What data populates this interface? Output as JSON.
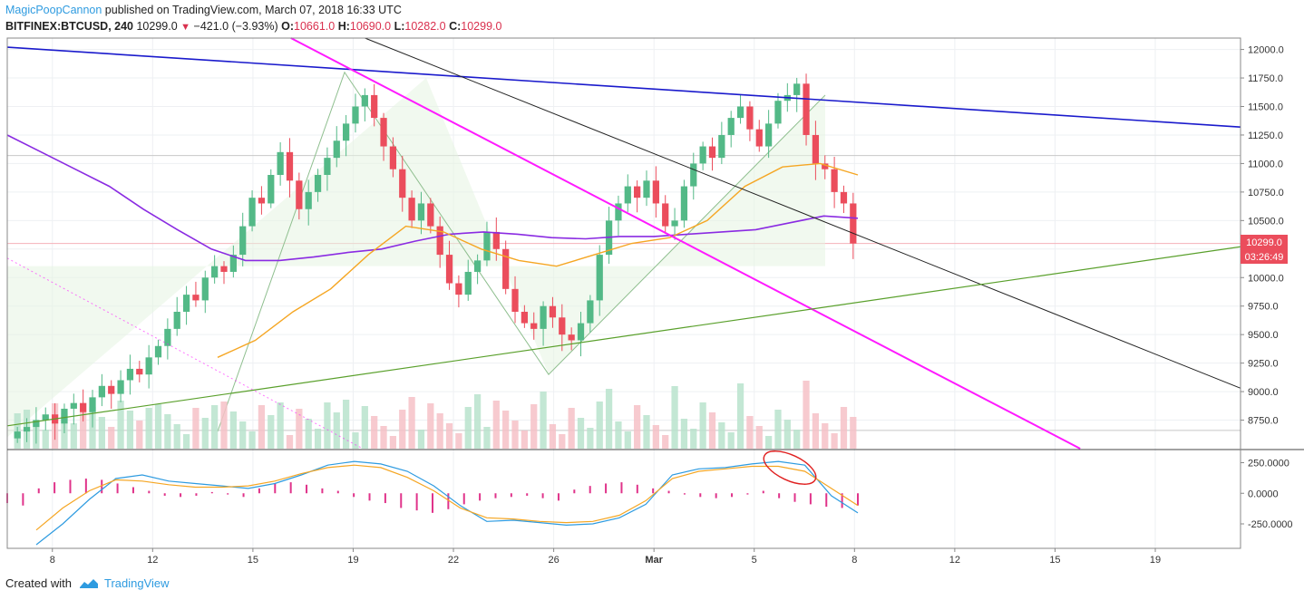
{
  "header": {
    "username": "MagicPoopCannon",
    "published_text": " published on TradingView.com, March 07, 2018 16:33 UTC",
    "symbol": "BITFINEX:BTCUSD, 240",
    "last": "10299.0",
    "change": "−421.0 (−3.93%)",
    "o_label": "O:",
    "o": "10661.0",
    "h_label": "H:",
    "h": "10690.0",
    "l_label": "L:",
    "l": "10282.0",
    "c_label": "C:",
    "c": "10299.0"
  },
  "price_tag": {
    "price": "10299.0",
    "countdown": "03:26:49"
  },
  "footer": {
    "created_with": "Created with",
    "brand": "TradingView"
  },
  "colors": {
    "up": "#53b987",
    "down": "#eb4d5c",
    "ma_purple": "#8a2be2",
    "ma_orange": "#f5a623",
    "blue_line": "#1a1acc",
    "magenta_line": "#ff1aff",
    "black_line": "#222222",
    "green_line": "#5aa02c",
    "macd": "#2e9be0",
    "signal": "#f5a623",
    "hist": "#e0338a"
  },
  "chart_data": [
    {
      "type": "candlestick",
      "title": "BITFINEX:BTCUSD, 240",
      "price_axis": {
        "ylim": [
          8500,
          12100
        ],
        "ticks": [
          "12000.0",
          "11750.0",
          "11500.0",
          "11250.0",
          "11000.0",
          "10750.0",
          "10500.0",
          "10250.0",
          "10000.0",
          "9750.0",
          "9500.0",
          "9250.0",
          "9000.0",
          "8750.0"
        ]
      },
      "time_axis": {
        "ticks": [
          "8",
          "12",
          "15",
          "19",
          "22",
          "26",
          "Mar",
          "5",
          "8",
          "12",
          "15",
          "19"
        ]
      },
      "grid": true,
      "candles_close": [
        8650,
        8690,
        8750,
        8800,
        8720,
        8850,
        8900,
        8820,
        8950,
        9050,
        8980,
        9100,
        9200,
        9150,
        9300,
        9400,
        9550,
        9700,
        9850,
        9800,
        10000,
        10100,
        10050,
        10200,
        10450,
        10700,
        10650,
        10900,
        11100,
        10850,
        10600,
        10750,
        10900,
        11050,
        11200,
        11350,
        11500,
        11600,
        11400,
        11150,
        10950,
        10700,
        10500,
        10650,
        10450,
        10200,
        9950,
        9850,
        10050,
        10150,
        10400,
        10250,
        9900,
        9700,
        9600,
        9550,
        9750,
        9650,
        9500,
        9450,
        9600,
        9800,
        10200,
        10500,
        10650,
        10800,
        10700,
        10850,
        10650,
        10450,
        10500,
        10800,
        11000,
        11150,
        11050,
        11250,
        11400,
        11500,
        11300,
        11150,
        11350,
        11550,
        11600,
        11700,
        11250,
        11000,
        10950,
        10750,
        10650,
        10299
      ],
      "ma_purple": [
        11250,
        11100,
        10950,
        10800,
        10600,
        10420,
        10250,
        10150,
        10150,
        10180,
        10220,
        10250,
        10320,
        10380,
        10400,
        10380,
        10350,
        10340,
        10360,
        10360,
        10380,
        10400,
        10420,
        10480,
        10540,
        10520
      ],
      "ma_orange": [
        9300,
        9450,
        9700,
        9900,
        10200,
        10450,
        10400,
        10250,
        10150,
        10100,
        10200,
        10300,
        10350,
        10500,
        10800,
        10970,
        11000,
        10900
      ],
      "lines": [
        {
          "name": "",
          "from": [
            0,
            12020
          ],
          "to": [
            1,
            11320
          ]
        },
        {
          "name": "",
          "from": [
            0.23,
            12100
          ],
          "to": [
            0.87,
            8500
          ]
        },
        {
          "name": "",
          "from": [
            0.29,
            12100
          ],
          "to": [
            1,
            9030
          ]
        },
        {
          "name": "",
          "from": [
            0,
            8700
          ],
          "to": [
            1,
            10270
          ]
        }
      ]
    },
    {
      "type": "line",
      "title": "",
      "y_axis": {
        "ticks": [
          "250.0000",
          "0.0000",
          "-250.0000"
        ],
        "ylim": [
          -450,
          350
        ]
      },
      "series": [
        {
          "values": [
            -420,
            -250,
            -50,
            120,
            150,
            100,
            80,
            60,
            40,
            80,
            150,
            230,
            260,
            240,
            180,
            60,
            -100,
            -230,
            -220,
            -240,
            -260,
            -250,
            -200,
            -90,
            150,
            200,
            210,
            240,
            260,
            230,
            -20,
            -160
          ]
        },
        {
          "values": [
            -300,
            -120,
            20,
            110,
            100,
            70,
            50,
            50,
            60,
            100,
            160,
            210,
            230,
            210,
            130,
            20,
            -120,
            -200,
            -210,
            -230,
            -240,
            -230,
            -180,
            -60,
            120,
            180,
            200,
            220,
            220,
            180,
            40,
            -100
          ]
        }
      ],
      "histogram": [
        -80,
        -100,
        40,
        90,
        110,
        120,
        110,
        80,
        50,
        20,
        -20,
        -30,
        -20,
        10,
        -10,
        -30,
        40,
        80,
        90,
        70,
        40,
        20,
        -30,
        -60,
        -80,
        -120,
        -140,
        -160,
        -130,
        -90,
        -60,
        -40,
        -30,
        -20,
        -40,
        -60,
        30,
        60,
        80,
        90,
        70,
        40,
        20,
        -10,
        -30,
        -40,
        -30,
        -10,
        20,
        -40,
        -70,
        -90,
        -110,
        -120,
        -100
      ]
    }
  ]
}
